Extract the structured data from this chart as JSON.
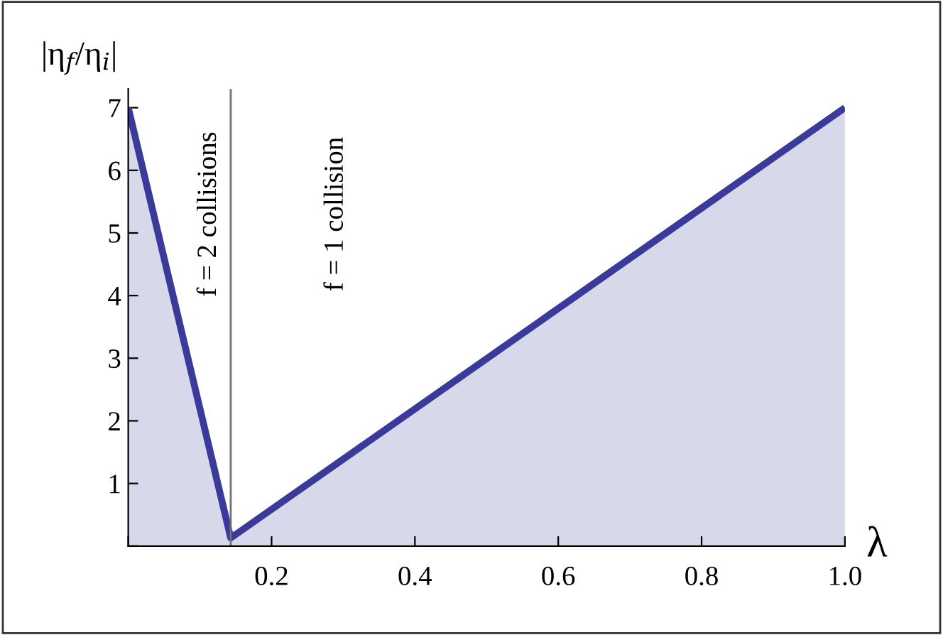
{
  "chart_data": {
    "type": "area",
    "xlabel": "λ",
    "ylabel": "|η$_{f}$/η$_{i}$|",
    "x": [
      0,
      0.143,
      1.0
    ],
    "series": [
      {
        "color": "#3a3a9a",
        "values": [
          7,
          0.13,
          7
        ]
      }
    ],
    "xlim": [
      0,
      1.0
    ],
    "ylim": [
      0,
      7.3
    ],
    "xticks": [
      {
        "value": 0,
        "label": null
      },
      0.2,
      0.4,
      0.6,
      0.8,
      {
        "value": 1.0,
        "label": "1.0"
      }
    ],
    "yticks": [
      {
        "value": 0,
        "label": null
      },
      1,
      2,
      3,
      4,
      5,
      6,
      7
    ],
    "ref_lines": [
      {
        "axis": "x",
        "value": 0.143,
        "color": "#707070"
      }
    ],
    "annotations": [
      "f = 2 collisions",
      "f = 1 collision"
    ],
    "grid": false,
    "marker": "none",
    "line_style": "solid"
  }
}
